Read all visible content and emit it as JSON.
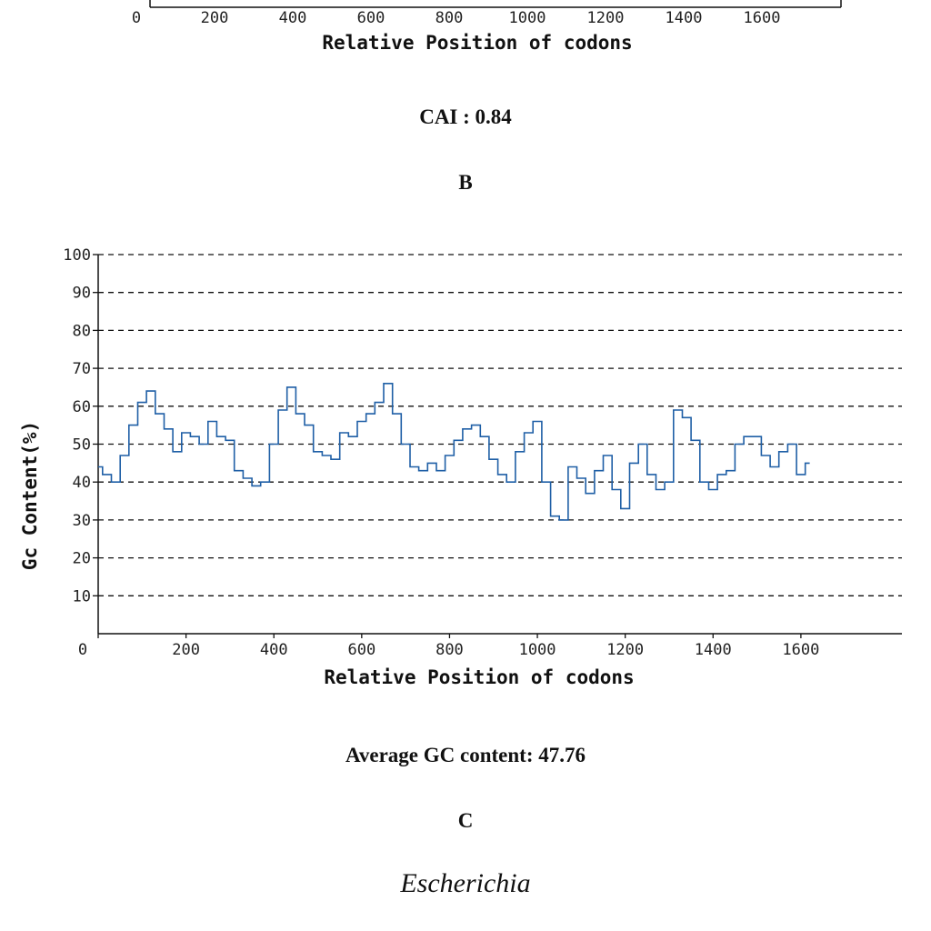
{
  "top_chart": {
    "xticks": [
      0,
      200,
      400,
      600,
      800,
      1000,
      1200,
      1400,
      1600
    ],
    "xlabel": "Relative Position of codons"
  },
  "cai_text": "CAI : 0.84",
  "panel_b_label": "B",
  "chart_data": {
    "type": "line",
    "title": "",
    "xlabel": "Relative Position of codons",
    "ylabel": "Gc Content(%)",
    "xlim": [
      0,
      1830
    ],
    "ylim": [
      0,
      100
    ],
    "xticks": [
      0,
      200,
      400,
      600,
      800,
      1000,
      1200,
      1400,
      1600
    ],
    "yticks": [
      10,
      20,
      30,
      40,
      50,
      60,
      70,
      80,
      90,
      100
    ],
    "grid": "horizontal dashed",
    "color": "#1f5fa6",
    "x": [
      0,
      20,
      40,
      60,
      80,
      100,
      120,
      140,
      160,
      180,
      200,
      220,
      240,
      260,
      280,
      300,
      320,
      340,
      360,
      380,
      400,
      420,
      440,
      460,
      480,
      500,
      520,
      540,
      560,
      580,
      600,
      620,
      640,
      660,
      680,
      700,
      720,
      740,
      760,
      780,
      800,
      820,
      840,
      860,
      880,
      900,
      920,
      940,
      960,
      980,
      1000,
      1020,
      1040,
      1060,
      1080,
      1100,
      1120,
      1140,
      1160,
      1180,
      1200,
      1220,
      1240,
      1260,
      1280,
      1300,
      1320,
      1340,
      1360,
      1380,
      1400,
      1420,
      1440,
      1460,
      1480,
      1500,
      1520,
      1540,
      1560,
      1580,
      1600,
      1620
    ],
    "values": [
      44,
      42,
      40,
      47,
      55,
      61,
      64,
      58,
      54,
      48,
      53,
      52,
      50,
      56,
      52,
      51,
      43,
      41,
      39,
      40,
      50,
      59,
      65,
      58,
      55,
      48,
      47,
      46,
      53,
      52,
      56,
      58,
      61,
      66,
      58,
      50,
      44,
      43,
      45,
      43,
      47,
      51,
      54,
      55,
      52,
      46,
      42,
      40,
      48,
      53,
      56,
      40,
      31,
      30,
      44,
      41,
      37,
      43,
      47,
      38,
      33,
      45,
      50,
      42,
      38,
      40,
      59,
      57,
      51,
      40,
      38,
      42,
      43,
      50,
      52,
      52,
      47,
      44,
      48,
      50,
      42,
      45
    ]
  },
  "avg_gc_text": "Average GC content: 47.76",
  "panel_c_label": "C",
  "species_label": "Escherichia"
}
